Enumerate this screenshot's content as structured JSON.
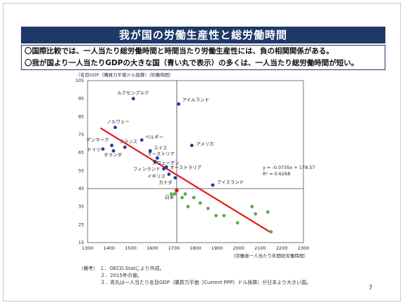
{
  "title": "我が国の労働生産性と総労働時間",
  "bullets": [
    "〇国際比較では、一人当たり総労働時間と時間当たり労働生産性には、負の相関関係がある。",
    "〇我が国より一人当たりGDPの大きな国（青い丸で表示）の多くは、一人当たり総労働時間が短い。"
  ],
  "chart_data": {
    "type": "scatter",
    "ylabel": "（名目GDP（購買力平価ドル換算）/労働時間）",
    "xlabel": "（労働者一人当たり年間総労働時間）",
    "xlim": [
      1300,
      2300
    ],
    "ylim": [
      15,
      105
    ],
    "xticks": [
      1300,
      1400,
      1500,
      1600,
      1700,
      1800,
      1900,
      2000,
      2100,
      2200,
      2300
    ],
    "yticks": [
      15,
      25,
      35,
      45,
      55,
      65,
      75,
      85,
      95,
      105
    ],
    "reference_lines": {
      "x": 1713,
      "y": 45
    },
    "grid": false,
    "regression": {
      "slope": -0.0735,
      "intercept": 178.57,
      "r2": 0.6268,
      "x_range": [
        1360,
        2150
      ],
      "equation_label": "y = -0.0735x + 178.57",
      "r2_label": "R² = 0.6268"
    },
    "series": [
      {
        "color": "#1f3c99",
        "points": [
          {
            "label": "ルクセンブルク",
            "x": 1512,
            "y": 95
          },
          {
            "label": "アイルランド",
            "x": 1722,
            "y": 92
          },
          {
            "label": "ノルウェー",
            "x": 1428,
            "y": 79
          },
          {
            "label": "ベルギー",
            "x": 1551,
            "y": 72
          },
          {
            "label": "デンマーク",
            "x": 1412,
            "y": 69
          },
          {
            "label": "フランス",
            "x": 1473,
            "y": 68
          },
          {
            "label": "ドイツ",
            "x": 1371,
            "y": 67
          },
          {
            "label": "オランダ",
            "x": 1420,
            "y": 66
          },
          {
            "label": "スイス",
            "x": 1590,
            "y": 66
          },
          {
            "label": "アメリカ",
            "x": 1783,
            "y": 69
          },
          {
            "label": "オーストリア",
            "x": 1623,
            "y": 62
          },
          {
            "label": "スウェーデン",
            "x": 1612,
            "y": 60
          },
          {
            "label": "フィンランド",
            "x": 1653,
            "y": 56
          },
          {
            "label": "オーストラリア",
            "x": 1665,
            "y": 57
          },
          {
            "label": "アイスランド",
            "x": 1880,
            "y": 47
          },
          {
            "label": "イギリス",
            "x": 1677,
            "y": 53
          },
          {
            "label": "カナダ",
            "x": 1706,
            "y": 51
          }
        ]
      },
      {
        "color": "#e31a1c",
        "points": [
          {
            "label": "日本",
            "x": 1713,
            "y": 44
          }
        ]
      },
      {
        "color": "#5aab46",
        "points": [
          {
            "label": "",
            "x": 1688,
            "y": 42
          },
          {
            "label": "",
            "x": 1703,
            "y": 42
          },
          {
            "label": "",
            "x": 1738,
            "y": 40
          },
          {
            "label": "",
            "x": 1752,
            "y": 42
          },
          {
            "label": "",
            "x": 1765,
            "y": 35
          },
          {
            "label": "",
            "x": 1792,
            "y": 40
          },
          {
            "label": "",
            "x": 1822,
            "y": 37
          },
          {
            "label": "",
            "x": 1858,
            "y": 34
          },
          {
            "label": "",
            "x": 1895,
            "y": 30
          },
          {
            "label": "",
            "x": 1932,
            "y": 30
          },
          {
            "label": "",
            "x": 1995,
            "y": 26
          },
          {
            "label": "",
            "x": 2062,
            "y": 35
          },
          {
            "label": "",
            "x": 2078,
            "y": 31
          },
          {
            "label": "",
            "x": 2135,
            "y": 32
          },
          {
            "label": "",
            "x": 2150,
            "y": 21
          }
        ]
      }
    ]
  },
  "notes": [
    "（備考） １．OECD.Statにより作成。",
    "２．2015年の値。",
    "３．青丸は一人当たり名目GDP（購買力平価［Current PPP］ドル換算）が日本より大きい国。"
  ],
  "page_number": "7"
}
